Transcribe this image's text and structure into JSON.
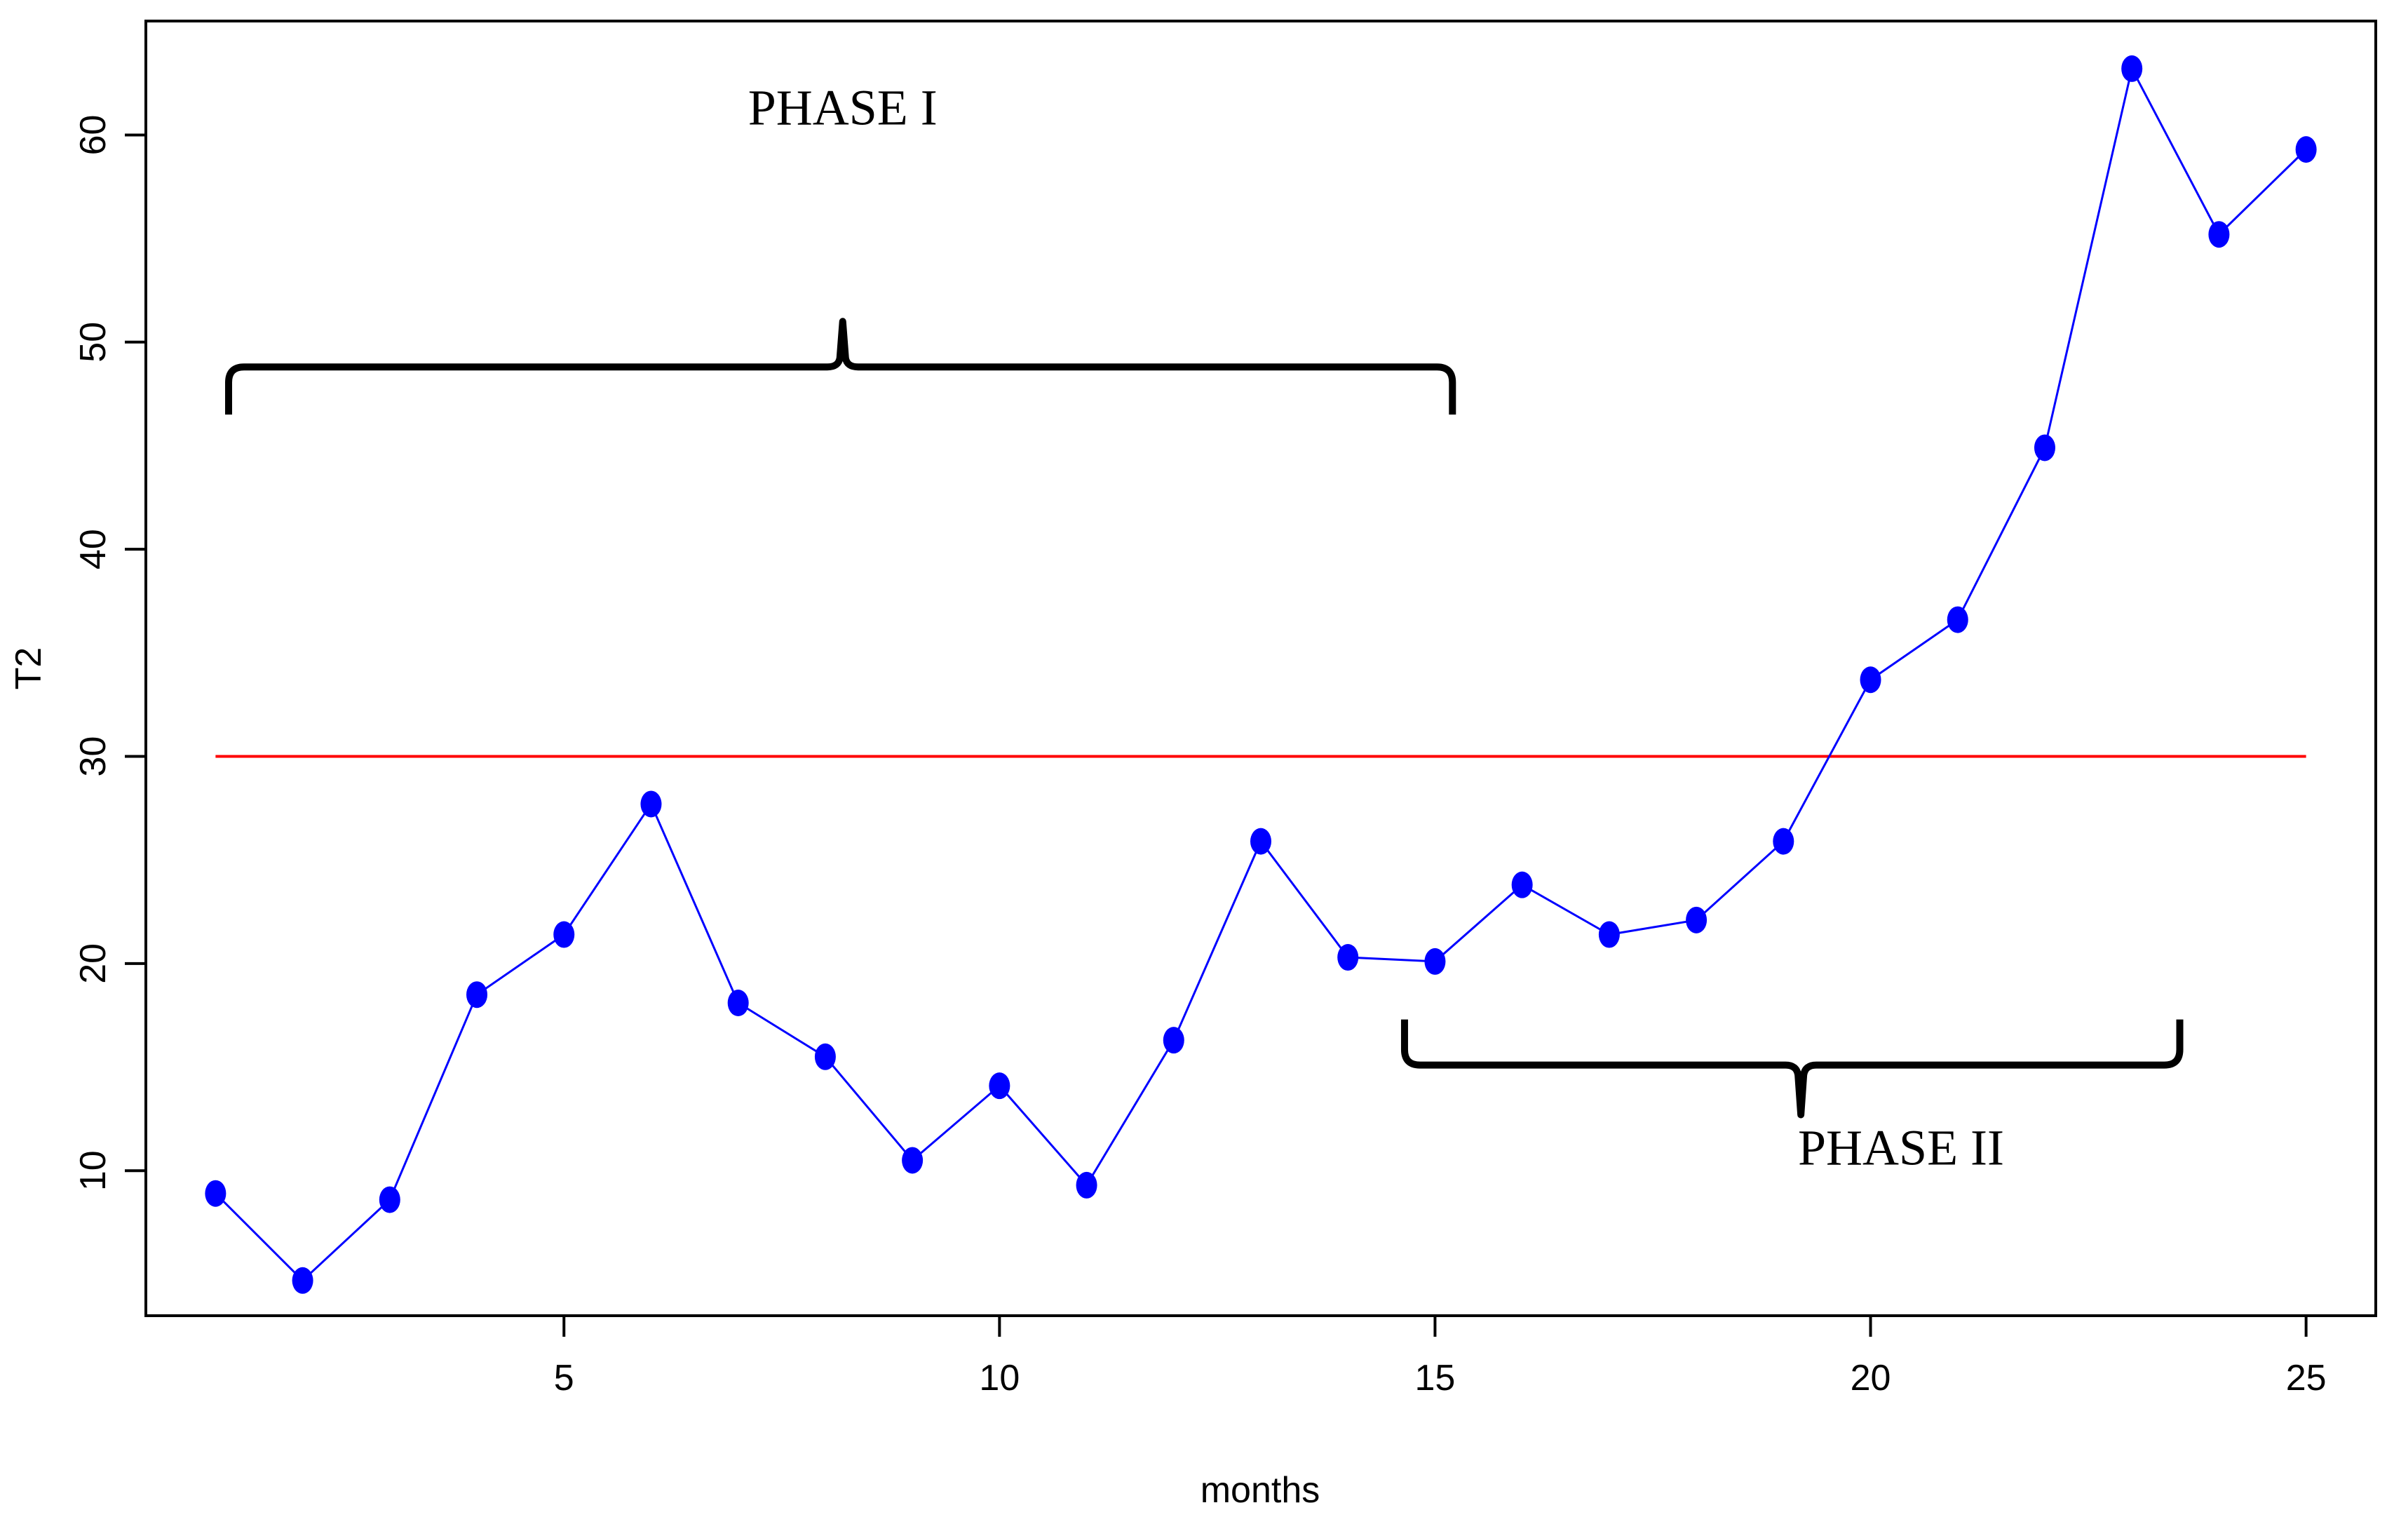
{
  "chart_data": {
    "type": "line",
    "title": "",
    "xlabel": "months",
    "ylabel": "T2",
    "xlim": [
      0.2,
      25.8
    ],
    "ylim": [
      3,
      65.5
    ],
    "x_ticks": [
      5,
      10,
      15,
      20,
      25
    ],
    "y_ticks": [
      10,
      20,
      30,
      40,
      50,
      60
    ],
    "grid": false,
    "colors": {
      "series": "#0000ff",
      "limit": "#ff0000",
      "brace": "#000000"
    },
    "series": [
      {
        "x": [
          1,
          2,
          3,
          4,
          5,
          6,
          7,
          8,
          9,
          10,
          11,
          12,
          13,
          14,
          15,
          16,
          17,
          18,
          19,
          20,
          21,
          22,
          23,
          24,
          25
        ],
        "values": [
          8.9,
          4.7,
          8.6,
          18.5,
          21.4,
          27.7,
          18.1,
          15.5,
          10.5,
          14.1,
          9.3,
          16.3,
          25.9,
          20.3,
          20.1,
          23.8,
          21.4,
          22.1,
          25.9,
          33.7,
          36.6,
          44.9,
          63.2,
          55.2,
          59.3
        ]
      }
    ],
    "reference_lines": [
      {
        "y": 30,
        "x_from": 1,
        "x_to": 25
      }
    ],
    "annotations": [
      {
        "text": "PHASE I",
        "x": 8.2,
        "y": 60.5
      },
      {
        "text": "PHASE II",
        "x": 20.35,
        "y": 10.3
      }
    ],
    "braces": [
      {
        "x_from": 1.15,
        "x_to": 15.2,
        "y_edge": 46.5,
        "y_line": 48.8,
        "y_tip": 51,
        "x_tip": 8.2,
        "direction": "up"
      },
      {
        "x_from": 14.65,
        "x_to": 23.55,
        "y_edge": 17.3,
        "y_line": 15.1,
        "y_tip": 12.7,
        "x_tip": 19.2,
        "direction": "down"
      }
    ]
  }
}
